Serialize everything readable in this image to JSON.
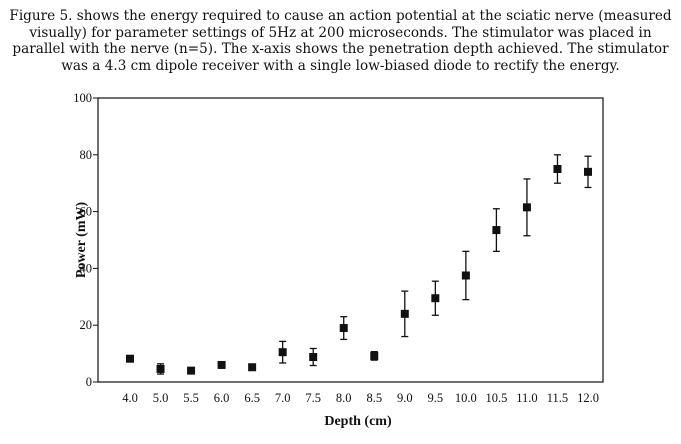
{
  "caption": "Figure 5. shows the energy required to cause an action potential at the sciatic nerve (measured visually) for parameter settings of 5Hz at 200 microseconds. The stimulator was placed in parallel with the nerve (n=5). The x-axis shows the penetration depth achieved. The stimulator was a 4.3 cm dipole receiver with a single low-biased diode to rectify the energy.",
  "chart_data": {
    "type": "scatter",
    "title": "",
    "xlabel": "Depth (cm)",
    "ylabel": "Power (mW)",
    "x": [
      "4.0",
      "5.0",
      "5.5",
      "6.0",
      "6.5",
      "7.0",
      "7.5",
      "8.0",
      "8.5",
      "9.0",
      "9.5",
      "10.0",
      "10.5",
      "11.0",
      "11.5",
      "12.0"
    ],
    "y": [
      8.2,
      4.6,
      4.0,
      6.0,
      5.2,
      10.5,
      8.8,
      19.0,
      9.2,
      24.0,
      29.5,
      37.5,
      53.5,
      61.5,
      75.0,
      74.0
    ],
    "err_low": [
      null,
      1.8,
      null,
      null,
      null,
      3.8,
      3.0,
      4.0,
      1.5,
      8.0,
      6.0,
      8.5,
      7.5,
      10.0,
      5.0,
      5.5
    ],
    "err_high": [
      null,
      1.8,
      null,
      null,
      null,
      3.8,
      3.0,
      4.0,
      1.5,
      8.0,
      6.0,
      8.5,
      7.5,
      10.0,
      5.0,
      5.5
    ],
    "ylim": [
      0,
      100
    ],
    "yticks": [
      0,
      20,
      40,
      60,
      80,
      100
    ],
    "grid": false,
    "marker": "square",
    "color": "#111111"
  }
}
